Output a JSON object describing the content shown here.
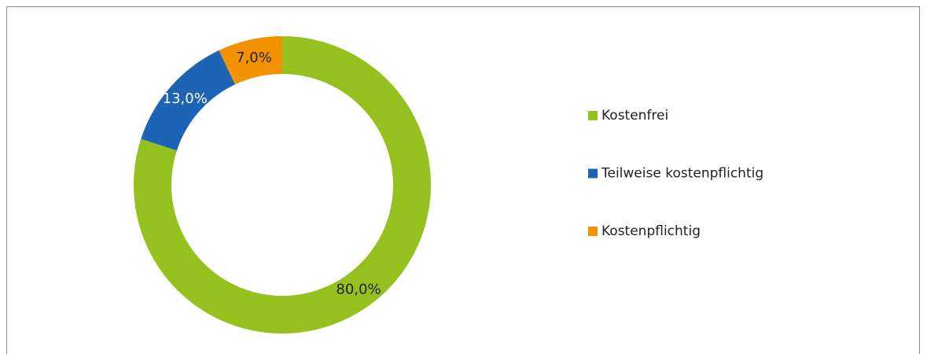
{
  "chart_data": {
    "type": "donut",
    "categories": [
      "Kostenfrei",
      "Teilweise kostenpflichtig",
      "Kostenpflichtig"
    ],
    "values": [
      80,
      13,
      7
    ],
    "value_labels": [
      "80,0%",
      "13,0%",
      "7,0%"
    ],
    "colors": [
      "#95c11f",
      "#1d64b4",
      "#f39200"
    ],
    "label_colors": [
      "#222222",
      "#ffffff",
      "#222222"
    ],
    "legend": "right"
  }
}
